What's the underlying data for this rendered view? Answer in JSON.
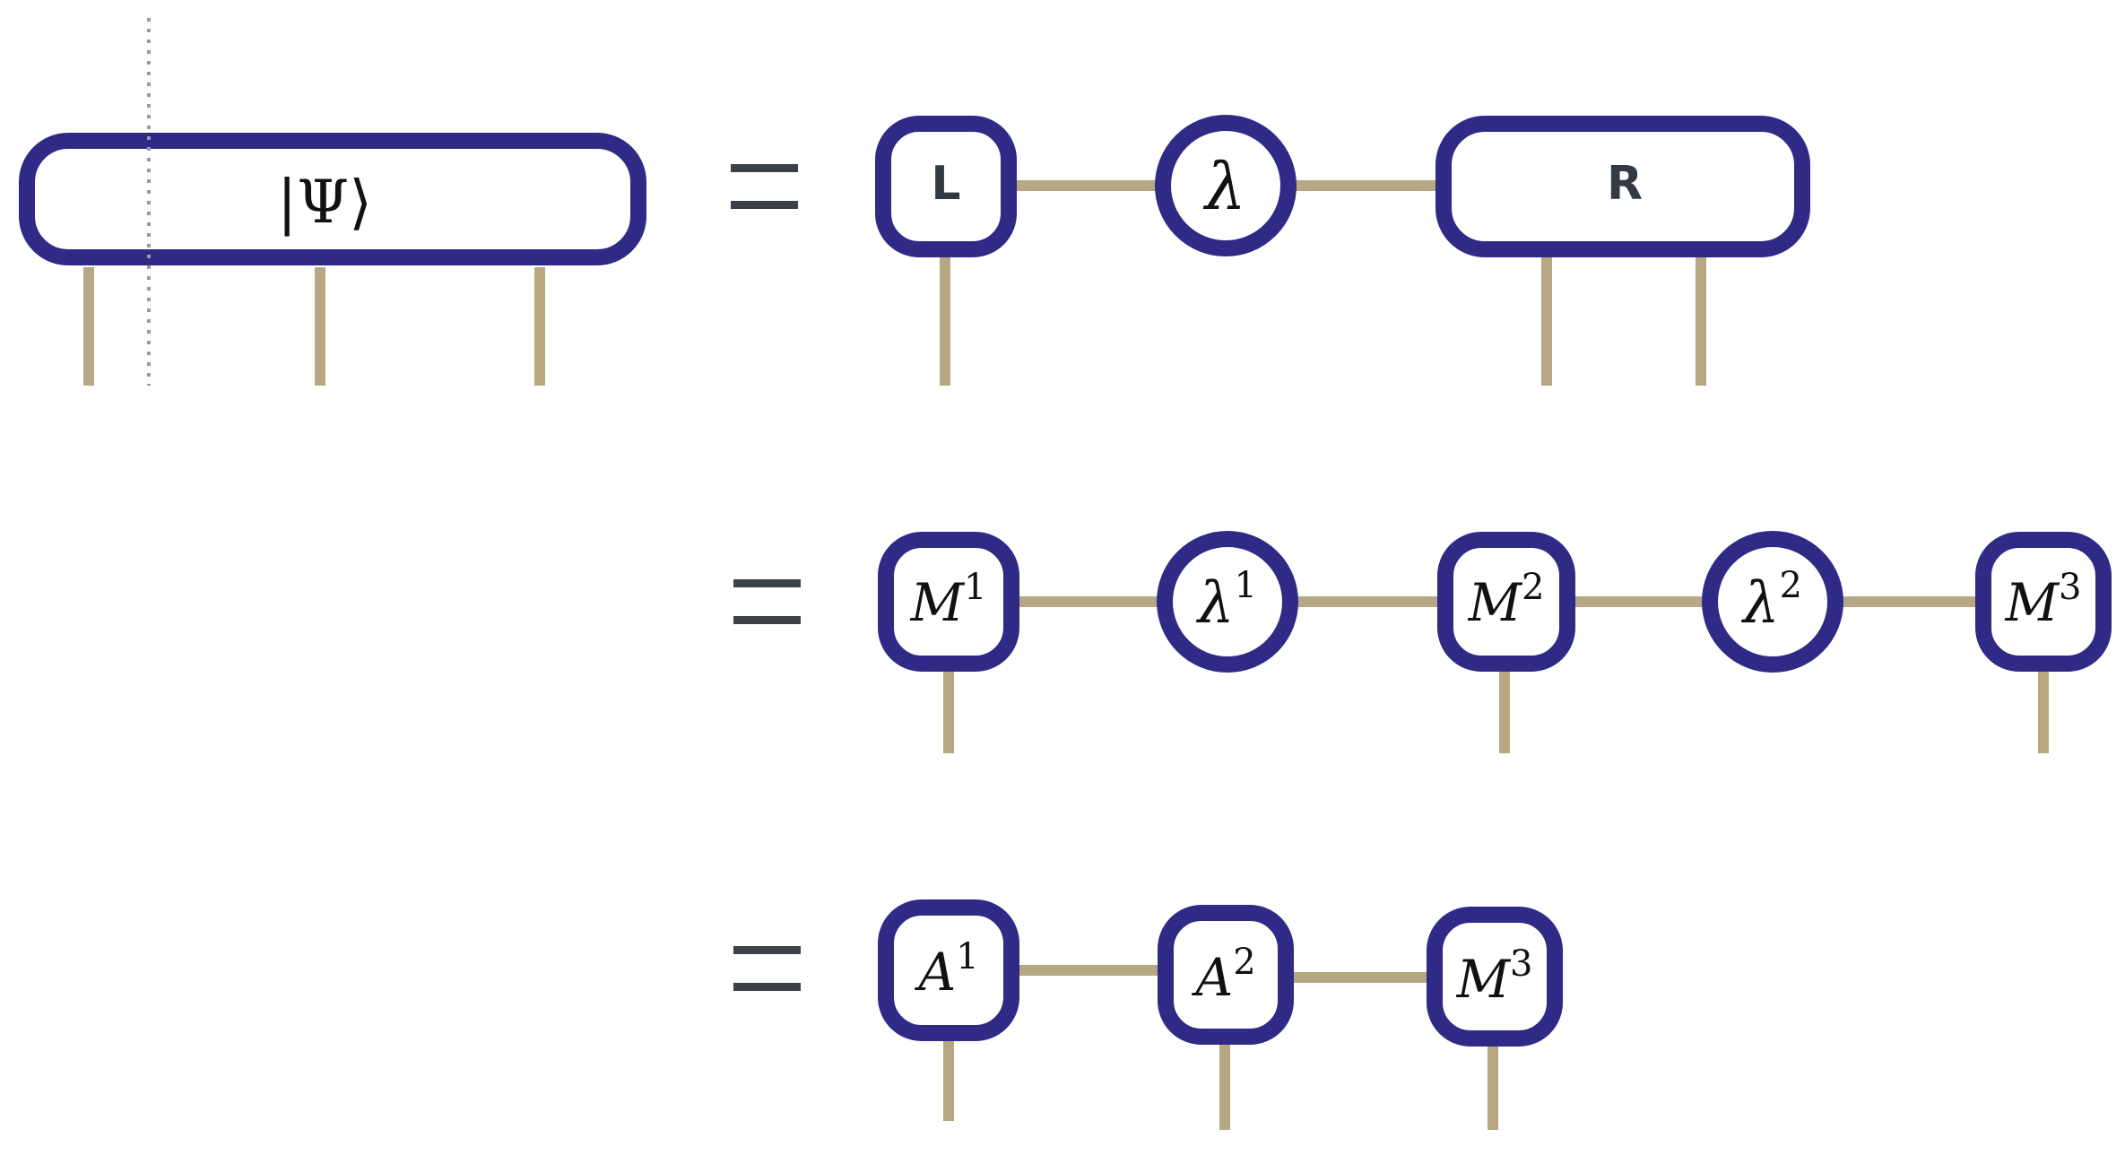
{
  "colors": {
    "node_stroke": "#2e2a85",
    "leg": "#b5a882",
    "equals": "#3c4047",
    "cut_line": "#9a98b0",
    "text": "#111111"
  },
  "row1": {
    "state": {
      "bra_left": "|",
      "symbol": "Ψ",
      "bra_right": "⟩"
    },
    "L": {
      "label": "L"
    },
    "lambda": {
      "symbol": "λ"
    },
    "R": {
      "label": "R"
    }
  },
  "row2": {
    "nodes": [
      {
        "symbol": "M",
        "sup": "1"
      },
      {
        "symbol": "λ",
        "sup": "1"
      },
      {
        "symbol": "M",
        "sup": "2"
      },
      {
        "symbol": "λ",
        "sup": "2"
      },
      {
        "symbol": "M",
        "sup": "3"
      }
    ]
  },
  "row3": {
    "nodes": [
      {
        "symbol": "A",
        "sup": "1"
      },
      {
        "symbol": "A",
        "sup": "2"
      },
      {
        "symbol": "M",
        "sup": "3"
      }
    ]
  }
}
